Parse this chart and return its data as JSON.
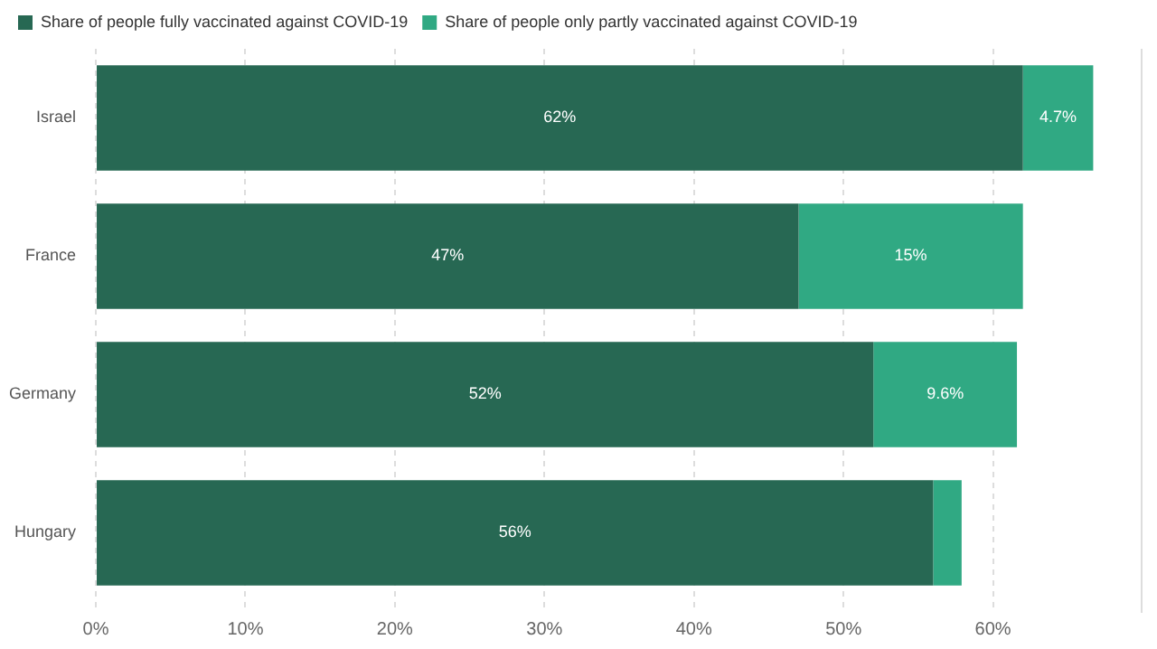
{
  "chart_data": {
    "type": "bar",
    "orientation": "horizontal",
    "stacked": true,
    "categories": [
      "Israel",
      "France",
      "Germany",
      "Hungary"
    ],
    "series": [
      {
        "name": "Share of people fully vaccinated against COVID-19",
        "color": "#276853",
        "values": [
          62,
          47,
          52,
          56
        ],
        "value_labels": [
          "62%",
          "47%",
          "52%",
          "56%"
        ]
      },
      {
        "name": "Share of people only partly vaccinated against COVID-19",
        "color": "#30a983",
        "values": [
          4.7,
          15,
          9.6,
          1.9
        ],
        "value_labels": [
          "4.7%",
          "15%",
          "9.6%",
          null
        ]
      }
    ],
    "xlim": [
      0,
      70
    ],
    "xticks": [
      {
        "value": 0,
        "label": "0%"
      },
      {
        "value": 10,
        "label": "10%"
      },
      {
        "value": 20,
        "label": "20%"
      },
      {
        "value": 30,
        "label": "30%"
      },
      {
        "value": 40,
        "label": "40%"
      },
      {
        "value": 50,
        "label": "50%"
      },
      {
        "value": 60,
        "label": "60%"
      }
    ],
    "grid": "x",
    "legend": "top left"
  }
}
